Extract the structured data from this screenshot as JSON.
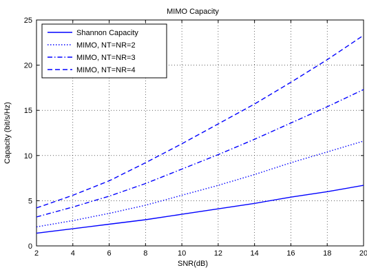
{
  "chart_data": {
    "type": "line",
    "title": "MIMO Capacity",
    "xlabel": "SNR(dB)",
    "ylabel": "Capacity (bit/s/Hz)",
    "xlim": [
      2,
      20
    ],
    "ylim": [
      0,
      25
    ],
    "xticks": [
      2,
      4,
      6,
      8,
      10,
      12,
      14,
      16,
      18,
      20
    ],
    "yticks": [
      0,
      5,
      10,
      15,
      20,
      25
    ],
    "grid": true,
    "legend_position": "top-left",
    "x": [
      2,
      4,
      6,
      8,
      10,
      12,
      14,
      16,
      18,
      20
    ],
    "series": [
      {
        "name": "Shannon Capacity",
        "style": "solid",
        "color": "#0000ff",
        "values": [
          1.4,
          1.9,
          2.4,
          2.9,
          3.5,
          4.1,
          4.7,
          5.4,
          6.0,
          6.7
        ]
      },
      {
        "name": "MIMO, NT=NR=2",
        "style": "dotted",
        "color": "#0000ff",
        "values": [
          2.1,
          2.8,
          3.6,
          4.5,
          5.6,
          6.7,
          7.9,
          9.2,
          10.4,
          11.6
        ]
      },
      {
        "name": "MIMO, NT=NR=3",
        "style": "dashdot",
        "color": "#0000ff",
        "values": [
          3.2,
          4.3,
          5.5,
          6.9,
          8.5,
          10.1,
          11.8,
          13.6,
          15.4,
          17.3
        ]
      },
      {
        "name": "MIMO, NT=NR=4",
        "style": "dashed",
        "color": "#0000ff",
        "values": [
          4.2,
          5.6,
          7.2,
          9.2,
          11.3,
          13.5,
          15.7,
          18.1,
          20.6,
          23.3
        ]
      }
    ]
  }
}
